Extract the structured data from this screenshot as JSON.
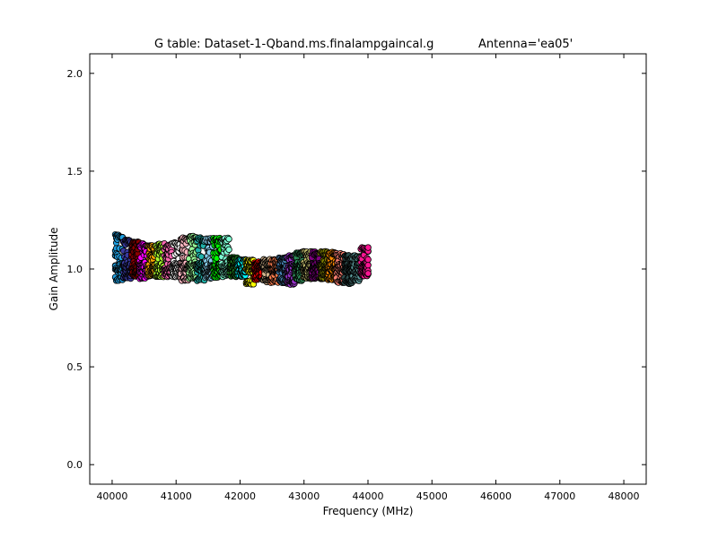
{
  "chart_data": {
    "type": "scatter",
    "title": "G table: Dataset-1-Qband.ms.finalampgaincal.g",
    "subtitle": "Antenna='ea05'",
    "xlabel": "Frequency (MHz)",
    "ylabel": "Gain Amplitude",
    "xlim": [
      39650,
      48350
    ],
    "ylim": [
      -0.1,
      2.1
    ],
    "xticks": [
      40000,
      41000,
      42000,
      43000,
      44000,
      45000,
      46000,
      47000,
      48000
    ],
    "yticks": [
      0.0,
      0.5,
      1.0,
      1.5,
      2.0
    ],
    "xtick_labels": [
      "40000",
      "41000",
      "42000",
      "43000",
      "44000",
      "45000",
      "46000",
      "47000",
      "48000"
    ],
    "ytick_labels": [
      "0.0",
      "0.5",
      "1.0",
      "1.5",
      "2.0"
    ],
    "grid": false,
    "legend": "none",
    "x_start": 40050,
    "x_step": 128,
    "channels_per_band": 16,
    "points_per_channel": 8,
    "bands": [
      {
        "color": "#1f9ee0",
        "lo": 0.94,
        "hi": 1.18
      },
      {
        "color": "#3a3aa0",
        "lo": 0.95,
        "hi": 1.15
      },
      {
        "color": "#8b0000",
        "lo": 0.96,
        "hi": 1.14
      },
      {
        "color": "#ff00ff",
        "lo": 0.95,
        "hi": 1.13
      },
      {
        "color": "#ffa500",
        "lo": 0.96,
        "hi": 1.12
      },
      {
        "color": "#adff2f",
        "lo": 0.96,
        "hi": 1.13
      },
      {
        "color": "#ff69b4",
        "lo": 0.96,
        "hi": 1.13
      },
      {
        "color": "#ffffff",
        "lo": 0.96,
        "hi": 1.14
      },
      {
        "color": "#ffb6c1",
        "lo": 0.94,
        "hi": 1.16
      },
      {
        "color": "#98fb98",
        "lo": 0.95,
        "hi": 1.17
      },
      {
        "color": "#20b2aa",
        "lo": 0.94,
        "hi": 1.16
      },
      {
        "color": "#87ceeb",
        "lo": 0.95,
        "hi": 1.16
      },
      {
        "color": "#00ff00",
        "lo": 0.95,
        "hi": 1.16
      },
      {
        "color": "#7fffd4",
        "lo": 0.96,
        "hi": 1.16
      },
      {
        "color": "#228b22",
        "lo": 0.96,
        "hi": 1.06
      },
      {
        "color": "#00ffff",
        "lo": 0.96,
        "hi": 1.05
      },
      {
        "color": "#ffff00",
        "lo": 0.92,
        "hi": 1.05
      },
      {
        "color": "#ff0000",
        "lo": 0.94,
        "hi": 1.04
      },
      {
        "color": "#d2b48c",
        "lo": 0.93,
        "hi": 1.05
      },
      {
        "color": "#ff7f50",
        "lo": 0.93,
        "hi": 1.05
      },
      {
        "color": "#4682b4",
        "lo": 0.93,
        "hi": 1.06
      },
      {
        "color": "#9932cc",
        "lo": 0.92,
        "hi": 1.07
      },
      {
        "color": "#2e8b57",
        "lo": 0.94,
        "hi": 1.09
      },
      {
        "color": "#bdb76b",
        "lo": 0.95,
        "hi": 1.09
      },
      {
        "color": "#800080",
        "lo": 0.95,
        "hi": 1.09
      },
      {
        "color": "#808000",
        "lo": 0.95,
        "hi": 1.09
      },
      {
        "color": "#ff8c00",
        "lo": 0.94,
        "hi": 1.09
      },
      {
        "color": "#fa8072",
        "lo": 0.93,
        "hi": 1.08
      },
      {
        "color": "#2f4f4f",
        "lo": 0.92,
        "hi": 1.07
      },
      {
        "color": "#5f9ea0",
        "lo": 0.94,
        "hi": 1.07
      },
      {
        "color": "#ff1493",
        "lo": 0.96,
        "hi": 1.11
      }
    ]
  }
}
